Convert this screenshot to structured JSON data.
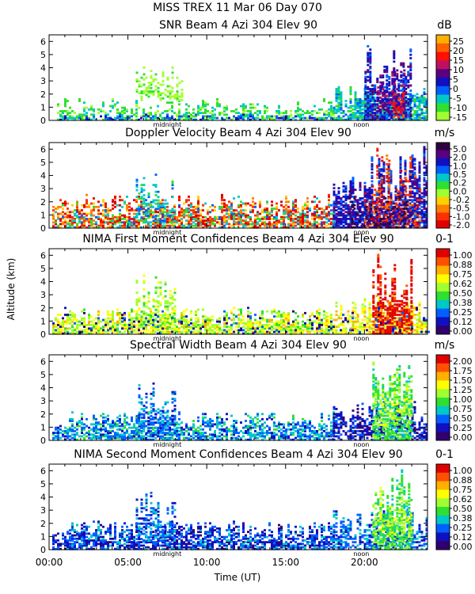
{
  "title_line1": "MISS TREX  11 Mar 06 Day 070",
  "y_axis_label": "Altitude (km)",
  "x_axis_label": "Time (UT)",
  "x_tick_labels": [
    "00:00",
    "05:00",
    "10:00",
    "15:00",
    "20:00"
  ],
  "marker_midnight": "midnight",
  "marker_noon": "noon",
  "chart_data": [
    {
      "type": "heatmap",
      "title": "SNR Beam 4 Azi 304 Elev 90",
      "unit": "dB",
      "x_range_hours": [
        0,
        24
      ],
      "ylim": [
        0,
        6.5
      ],
      "y_ticks": [
        0,
        1,
        2,
        3,
        4,
        5,
        6
      ],
      "colorbar_ticks": [
        "25",
        "20",
        "15",
        "10",
        "5",
        "0",
        "-5",
        "-10",
        "-15"
      ],
      "colorbar_colors": [
        "#ffb000",
        "#ff6000",
        "#ff1000",
        "#c01060",
        "#5a0080",
        "#1010c0",
        "#0060ff",
        "#00c8c8",
        "#30e030",
        "#a0ff30"
      ],
      "regions": [
        {
          "t0": 0.5,
          "t1": 18.0,
          "z0": 0.0,
          "z1": 1.6,
          "cls": 8,
          "density": 0.45
        },
        {
          "t0": 0.5,
          "t1": 18.0,
          "z0": 0.0,
          "z1": 0.5,
          "cls": 6,
          "density": 0.35
        },
        {
          "t0": 5.5,
          "t1": 8.5,
          "z0": 1.5,
          "z1": 4.3,
          "cls": 9,
          "density": 0.35
        },
        {
          "t0": 18.0,
          "t1": 23.9,
          "z0": 0.0,
          "z1": 2.8,
          "cls": 7,
          "density": 0.75
        },
        {
          "t0": 20.0,
          "t1": 23.0,
          "z0": 0.0,
          "z1": 6.1,
          "cls": 5,
          "density": 0.6
        },
        {
          "t0": 20.8,
          "t1": 22.5,
          "z0": 0.5,
          "z1": 4.0,
          "cls": 4,
          "density": 0.55
        },
        {
          "t0": 21.8,
          "t1": 22.5,
          "z0": 0.2,
          "z1": 2.5,
          "cls": 2,
          "density": 0.45
        }
      ]
    },
    {
      "type": "heatmap",
      "title": "Doppler Velocity Beam 4 Azi 304 Elev 90",
      "unit": "m/s",
      "x_range_hours": [
        0,
        24
      ],
      "ylim": [
        0,
        6.5
      ],
      "y_ticks": [
        0,
        1,
        2,
        3,
        4,
        5,
        6
      ],
      "colorbar_ticks": [
        "5.0",
        "2.0",
        "1.0",
        "0.5",
        "0.2",
        "0.0",
        "-0.2",
        "-0.5",
        "-1.0",
        "-2.0"
      ],
      "colorbar_colors": [
        "#300040",
        "#5a0080",
        "#1010c0",
        "#0060ff",
        "#00c8c8",
        "#30e030",
        "#a0ff30",
        "#ffd000",
        "#ff8000",
        "#ff3000",
        "#e00000"
      ],
      "regions": [
        {
          "t0": 0.2,
          "t1": 18.0,
          "z0": 0.0,
          "z1": 2.5,
          "cls": 8,
          "density": 0.4
        },
        {
          "t0": 0.2,
          "t1": 18.0,
          "z0": 0.0,
          "z1": 2.5,
          "cls": 10,
          "density": 0.25
        },
        {
          "t0": 0.2,
          "t1": 18.0,
          "z0": 0.0,
          "z1": 2.5,
          "cls": 4,
          "density": 0.2
        },
        {
          "t0": 5.5,
          "t1": 8.0,
          "z0": 0.5,
          "z1": 4.5,
          "cls": 4,
          "density": 0.35
        },
        {
          "t0": 18.0,
          "t1": 24.0,
          "z0": 0.0,
          "z1": 6.2,
          "cls": 2,
          "density": 0.75
        },
        {
          "t0": 20.0,
          "t1": 23.5,
          "z0": 0.0,
          "z1": 6.2,
          "cls": 9,
          "density": 0.3
        },
        {
          "t0": 19.0,
          "t1": 23.0,
          "z0": 0.0,
          "z1": 3.0,
          "cls": 0,
          "density": 0.25
        }
      ]
    },
    {
      "type": "heatmap",
      "title": "NIMA First Moment Confidences Beam 4 Azi 304 Elev 90",
      "unit": "0-1",
      "x_range_hours": [
        0,
        24
      ],
      "ylim": [
        0,
        6.5
      ],
      "y_ticks": [
        0,
        1,
        2,
        3,
        4,
        5,
        6
      ],
      "colorbar_ticks": [
        "1.00",
        "0.88",
        "0.75",
        "0.62",
        "0.50",
        "0.38",
        "0.25",
        "0.12",
        "0.00"
      ],
      "colorbar_colors": [
        "#e00000",
        "#ff5000",
        "#ffb000",
        "#ffff00",
        "#a0ff30",
        "#30e030",
        "#00c8c8",
        "#0060ff",
        "#1010c0",
        "#300070"
      ],
      "regions": [
        {
          "t0": 0.2,
          "t1": 18.0,
          "z0": 0.0,
          "z1": 2.0,
          "cls": 3,
          "density": 0.5
        },
        {
          "t0": 0.2,
          "t1": 18.0,
          "z0": 0.0,
          "z1": 2.0,
          "cls": 4,
          "density": 0.35
        },
        {
          "t0": 5.5,
          "t1": 8.0,
          "z0": 0.5,
          "z1": 4.5,
          "cls": 4,
          "density": 0.4
        },
        {
          "t0": 18.0,
          "t1": 24.0,
          "z0": 0.0,
          "z1": 3.2,
          "cls": 3,
          "density": 0.6
        },
        {
          "t0": 20.5,
          "t1": 23.0,
          "z0": 0.0,
          "z1": 6.2,
          "cls": 0,
          "density": 0.65
        },
        {
          "t0": 0.2,
          "t1": 24.0,
          "z0": 0.0,
          "z1": 2.2,
          "cls": 8,
          "density": 0.08
        }
      ]
    },
    {
      "type": "heatmap",
      "title": "Spectral Width Beam 4 Azi 304 Elev 90",
      "unit": "m/s",
      "x_range_hours": [
        0,
        24
      ],
      "ylim": [
        0,
        6.5
      ],
      "y_ticks": [
        0,
        1,
        2,
        3,
        4,
        5,
        6
      ],
      "colorbar_ticks": [
        "2.00",
        "1.75",
        "1.50",
        "1.25",
        "1.00",
        "0.75",
        "0.50",
        "0.25",
        "0.00"
      ],
      "colorbar_colors": [
        "#e00000",
        "#ff5000",
        "#ffb000",
        "#ffff00",
        "#a0ff30",
        "#30e030",
        "#00c8c8",
        "#0060ff",
        "#1010c0",
        "#300070"
      ],
      "regions": [
        {
          "t0": 0.2,
          "t1": 18.0,
          "z0": 0.0,
          "z1": 2.2,
          "cls": 6,
          "density": 0.4
        },
        {
          "t0": 0.2,
          "t1": 18.0,
          "z0": 0.0,
          "z1": 2.2,
          "cls": 7,
          "density": 0.3
        },
        {
          "t0": 5.5,
          "t1": 8.0,
          "z0": 0.5,
          "z1": 4.5,
          "cls": 7,
          "density": 0.4
        },
        {
          "t0": 18.0,
          "t1": 24.0,
          "z0": 0.0,
          "z1": 3.2,
          "cls": 8,
          "density": 0.6
        },
        {
          "t0": 20.5,
          "t1": 23.0,
          "z0": 0.0,
          "z1": 6.2,
          "cls": 5,
          "density": 0.6
        },
        {
          "t0": 20.5,
          "t1": 23.0,
          "z0": 1.0,
          "z1": 5.0,
          "cls": 4,
          "density": 0.3
        }
      ]
    },
    {
      "type": "heatmap",
      "title": "NIMA Second Moment Confidences Beam 4 Azi 304 Elev 90",
      "unit": "0-1",
      "x_range_hours": [
        0,
        24
      ],
      "ylim": [
        0,
        6.5
      ],
      "y_ticks": [
        0,
        1,
        2,
        3,
        4,
        5,
        6
      ],
      "colorbar_ticks": [
        "1.00",
        "0.88",
        "0.75",
        "0.62",
        "0.50",
        "0.38",
        "0.25",
        "0.12",
        "0.00"
      ],
      "colorbar_colors": [
        "#e00000",
        "#ff5000",
        "#ffb000",
        "#ffff00",
        "#a0ff30",
        "#30e030",
        "#00c8c8",
        "#0060ff",
        "#1010c0",
        "#300070"
      ],
      "regions": [
        {
          "t0": 0.2,
          "t1": 18.0,
          "z0": 0.0,
          "z1": 2.2,
          "cls": 8,
          "density": 0.5
        },
        {
          "t0": 0.2,
          "t1": 18.0,
          "z0": 0.0,
          "z1": 2.2,
          "cls": 7,
          "density": 0.3
        },
        {
          "t0": 5.5,
          "t1": 8.0,
          "z0": 0.5,
          "z1": 4.5,
          "cls": 7,
          "density": 0.4
        },
        {
          "t0": 18.0,
          "t1": 24.0,
          "z0": 0.0,
          "z1": 3.2,
          "cls": 7,
          "density": 0.55
        },
        {
          "t0": 20.5,
          "t1": 23.0,
          "z0": 0.0,
          "z1": 6.2,
          "cls": 5,
          "density": 0.55
        },
        {
          "t0": 20.5,
          "t1": 23.0,
          "z0": 1.0,
          "z1": 5.0,
          "cls": 4,
          "density": 0.3
        }
      ]
    }
  ]
}
